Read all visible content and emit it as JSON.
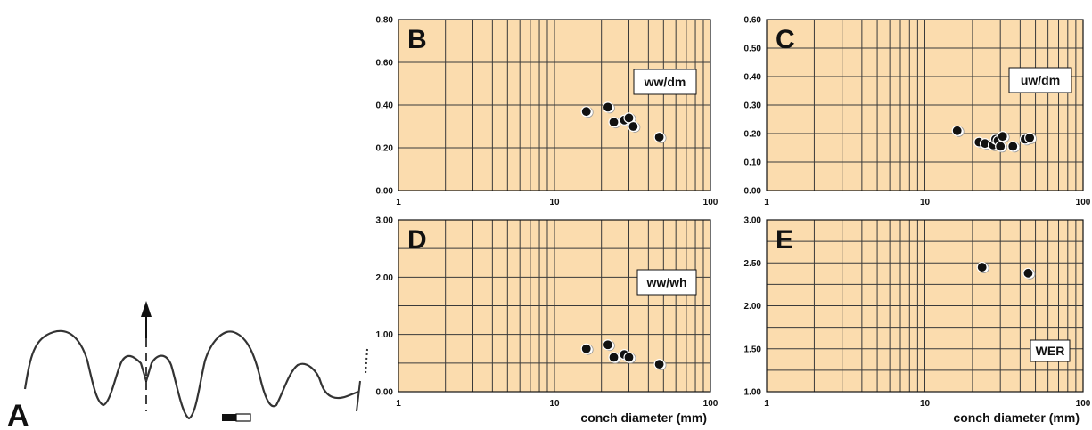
{
  "figure": {
    "panel_a": {
      "label": "A"
    }
  },
  "chart_data": [
    {
      "id": "B",
      "type": "scatter",
      "panel_label": "B",
      "ratio_label": "ww/dm",
      "xscale": "log",
      "xlim": [
        1,
        100
      ],
      "ylim": [
        0,
        0.8
      ],
      "xticks": [
        "1",
        "10",
        "100"
      ],
      "yticks": [
        "0.00",
        "0.20",
        "0.40",
        "0.60",
        "0.80"
      ],
      "xlabel": "",
      "grid": true,
      "points": [
        {
          "x": 16,
          "y": 0.37
        },
        {
          "x": 22,
          "y": 0.39
        },
        {
          "x": 24,
          "y": 0.32
        },
        {
          "x": 28,
          "y": 0.33
        },
        {
          "x": 30,
          "y": 0.34
        },
        {
          "x": 32,
          "y": 0.3
        },
        {
          "x": 47,
          "y": 0.25
        }
      ]
    },
    {
      "id": "C",
      "type": "scatter",
      "panel_label": "C",
      "ratio_label": "uw/dm",
      "xscale": "log",
      "xlim": [
        1,
        100
      ],
      "ylim": [
        0,
        0.6
      ],
      "xticks": [
        "1",
        "10",
        "100"
      ],
      "yticks": [
        "0.00",
        "0.10",
        "0.20",
        "0.30",
        "0.40",
        "0.50",
        "0.60"
      ],
      "xlabel": "",
      "grid": true,
      "points": [
        {
          "x": 16,
          "y": 0.21
        },
        {
          "x": 22,
          "y": 0.17
        },
        {
          "x": 24,
          "y": 0.165
        },
        {
          "x": 27,
          "y": 0.16
        },
        {
          "x": 28,
          "y": 0.18
        },
        {
          "x": 29,
          "y": 0.175
        },
        {
          "x": 30,
          "y": 0.155
        },
        {
          "x": 31,
          "y": 0.19
        },
        {
          "x": 36,
          "y": 0.155
        },
        {
          "x": 43,
          "y": 0.18
        },
        {
          "x": 46,
          "y": 0.185
        }
      ]
    },
    {
      "id": "D",
      "type": "scatter",
      "panel_label": "D",
      "ratio_label": "ww/wh",
      "xscale": "log",
      "xlim": [
        1,
        100
      ],
      "ylim": [
        0,
        3
      ],
      "xticks": [
        "1",
        "10",
        "100"
      ],
      "yticks": [
        "0.00",
        "1.00",
        "2.00",
        "3.00"
      ],
      "xlabel": "conch diameter (mm)",
      "grid": true,
      "points": [
        {
          "x": 16,
          "y": 0.75
        },
        {
          "x": 22,
          "y": 0.82
        },
        {
          "x": 24,
          "y": 0.6
        },
        {
          "x": 28,
          "y": 0.65
        },
        {
          "x": 30,
          "y": 0.6
        },
        {
          "x": 47,
          "y": 0.48
        }
      ]
    },
    {
      "id": "E",
      "type": "scatter",
      "panel_label": "E",
      "ratio_label": "WER",
      "xscale": "log",
      "xlim": [
        1,
        100
      ],
      "ylim": [
        1,
        3
      ],
      "xticks": [
        "1",
        "10",
        "100"
      ],
      "yticks": [
        "1.00",
        "1.50",
        "2.00",
        "2.50",
        "3.00"
      ],
      "xlabel": "conch diameter (mm)",
      "grid": true,
      "points": [
        {
          "x": 23,
          "y": 2.45
        },
        {
          "x": 45,
          "y": 2.38
        }
      ]
    }
  ]
}
